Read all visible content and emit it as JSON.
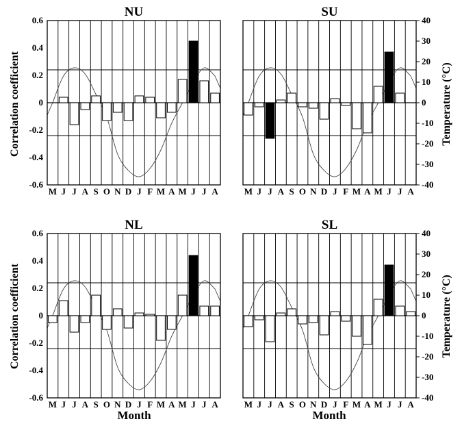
{
  "figure": {
    "ylabel_left": "Correlation coefficient",
    "ylabel_right": "Temperature (°C)",
    "xlabel": "Month"
  },
  "chart_data": [
    {
      "type": "bar",
      "title": "NU",
      "categories": [
        "M",
        "J",
        "J",
        "A",
        "S",
        "O",
        "N",
        "D",
        "J",
        "F",
        "M",
        "A",
        "M",
        "J",
        "J",
        "A"
      ],
      "series": [
        {
          "values": [
            0.0,
            0.04,
            -0.16,
            -0.05,
            0.05,
            -0.13,
            -0.07,
            -0.13,
            0.05,
            0.04,
            -0.11,
            -0.07,
            0.17,
            0.45,
            0.16,
            0.07
          ],
          "significant": [
            false,
            false,
            false,
            false,
            false,
            false,
            false,
            false,
            false,
            false,
            false,
            false,
            false,
            true,
            false,
            false
          ]
        }
      ],
      "temperature": [
        0,
        13,
        17,
        14,
        4,
        -7,
        -25,
        -33,
        -36,
        -32,
        -23,
        -10,
        0,
        10,
        17,
        13
      ],
      "ylim": [
        -0.6,
        0.6
      ],
      "y2lim": [
        -40,
        40
      ],
      "significance_lines": [
        0.24,
        -0.24
      ],
      "yticks": [
        "0.6",
        "0.4",
        "0.2",
        "0",
        "-0.2",
        "-0.4",
        "-0.6"
      ],
      "y2ticks": [
        "40",
        "30",
        "20",
        "10",
        "0",
        "-10",
        "-20",
        "-30",
        "-40"
      ]
    },
    {
      "type": "bar",
      "title": "SU",
      "categories": [
        "M",
        "J",
        "J",
        "A",
        "S",
        "O",
        "N",
        "D",
        "J",
        "F",
        "M",
        "A",
        "M",
        "J",
        "J",
        "A"
      ],
      "series": [
        {
          "values": [
            -0.09,
            -0.03,
            -0.26,
            0.02,
            0.07,
            -0.03,
            -0.04,
            -0.12,
            0.03,
            -0.02,
            -0.19,
            -0.22,
            0.12,
            0.37,
            0.07,
            0.0
          ],
          "significant": [
            false,
            false,
            true,
            false,
            false,
            false,
            false,
            false,
            false,
            false,
            false,
            false,
            false,
            true,
            false,
            false
          ]
        }
      ],
      "temperature": [
        0,
        13,
        17,
        14,
        4,
        -7,
        -25,
        -33,
        -36,
        -32,
        -23,
        -10,
        0,
        10,
        17,
        13
      ],
      "ylim": [
        -0.6,
        0.6
      ],
      "y2lim": [
        -40,
        40
      ],
      "significance_lines": [
        0.24,
        -0.24
      ],
      "yticks": [
        "0.6",
        "0.4",
        "0.2",
        "0",
        "-0.2",
        "-0.4",
        "-0.6"
      ],
      "y2ticks": [
        "40",
        "30",
        "20",
        "10",
        "0",
        "-10",
        "-20",
        "-30",
        "-40"
      ]
    },
    {
      "type": "bar",
      "title": "NL",
      "categories": [
        "M",
        "J",
        "J",
        "A",
        "S",
        "O",
        "N",
        "D",
        "J",
        "F",
        "M",
        "A",
        "M",
        "J",
        "J",
        "A"
      ],
      "series": [
        {
          "values": [
            -0.05,
            0.11,
            -0.12,
            -0.05,
            0.15,
            -0.1,
            0.05,
            -0.09,
            0.02,
            0.01,
            -0.18,
            -0.1,
            0.15,
            0.44,
            0.07,
            0.07
          ],
          "significant": [
            false,
            false,
            false,
            false,
            false,
            false,
            false,
            false,
            false,
            false,
            false,
            false,
            false,
            true,
            false,
            false
          ]
        }
      ],
      "temperature": [
        0,
        13,
        17,
        14,
        4,
        -7,
        -25,
        -33,
        -36,
        -32,
        -23,
        -10,
        0,
        10,
        17,
        13
      ],
      "ylim": [
        -0.6,
        0.6
      ],
      "y2lim": [
        -40,
        40
      ],
      "significance_lines": [
        0.24,
        -0.24
      ],
      "yticks": [
        "0.6",
        "0.4",
        "0.2",
        "0",
        "-0.2",
        "-0.4",
        "-0.6"
      ],
      "y2ticks": [
        "40",
        "30",
        "20",
        "10",
        "0",
        "-10",
        "-20",
        "-30",
        "-40"
      ]
    },
    {
      "type": "bar",
      "title": "SL",
      "categories": [
        "M",
        "J",
        "J",
        "A",
        "S",
        "O",
        "N",
        "D",
        "J",
        "F",
        "M",
        "A",
        "M",
        "J",
        "J",
        "A"
      ],
      "series": [
        {
          "values": [
            -0.08,
            -0.03,
            -0.19,
            0.02,
            0.05,
            -0.06,
            -0.05,
            -0.14,
            0.03,
            -0.04,
            -0.15,
            -0.21,
            0.12,
            0.37,
            0.07,
            0.03
          ],
          "significant": [
            false,
            false,
            false,
            false,
            false,
            false,
            false,
            false,
            false,
            false,
            false,
            false,
            false,
            true,
            false,
            false
          ]
        }
      ],
      "temperature": [
        0,
        13,
        17,
        14,
        4,
        -7,
        -25,
        -33,
        -36,
        -32,
        -23,
        -10,
        0,
        10,
        17,
        13
      ],
      "ylim": [
        -0.6,
        0.6
      ],
      "y2lim": [
        -40,
        40
      ],
      "significance_lines": [
        0.24,
        -0.24
      ],
      "yticks": [
        "0.6",
        "0.4",
        "0.2",
        "0",
        "-0.2",
        "-0.4",
        "-0.6"
      ],
      "y2ticks": [
        "40",
        "30",
        "20",
        "10",
        "0",
        "-10",
        "-20",
        "-30",
        "-40"
      ]
    }
  ]
}
